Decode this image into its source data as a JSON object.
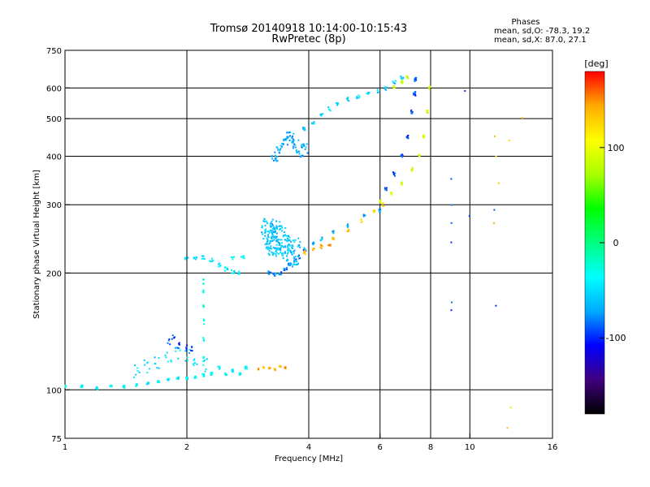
{
  "header": {
    "title": "Tromsø 20140918 10:14:00-10:15:43",
    "subtitle": "RwPretec (8p)",
    "stats_title": "Phases",
    "stats_o": "mean, sd,O: -78.3, 19.2",
    "stats_x": "mean, sd,X:  87.0, 27.1"
  },
  "chart_data": {
    "type": "scatter",
    "xlabel": "Frequency [MHz]",
    "ylabel": "Stationary phase Virtual Height [km]",
    "x_scale": "log",
    "y_scale": "log",
    "xlim": [
      1,
      16
    ],
    "ylim": [
      75,
      750
    ],
    "grid": true,
    "x_ticks": [
      {
        "value": 1,
        "label": "1"
      },
      {
        "value": 2,
        "label": "2"
      },
      {
        "value": 4,
        "label": "4"
      },
      {
        "value": 6,
        "label": "6"
      },
      {
        "value": 8,
        "label": "8"
      },
      {
        "value": 10,
        "label": "10"
      },
      {
        "value": 16,
        "label": "16"
      }
    ],
    "y_ticks": [
      {
        "value": 75,
        "label": "75"
      },
      {
        "value": 100,
        "label": "100"
      },
      {
        "value": 200,
        "label": "200"
      },
      {
        "value": 300,
        "label": "300"
      },
      {
        "value": 400,
        "label": "400"
      },
      {
        "value": 500,
        "label": "500"
      },
      {
        "value": 600,
        "label": "600"
      },
      {
        "value": 750,
        "label": "750"
      }
    ],
    "grid_x": [
      2,
      4,
      6,
      8,
      10
    ],
    "grid_y": [
      100,
      200,
      300,
      400,
      500,
      600
    ],
    "colorbar": {
      "label": "[deg]",
      "range": [
        -180,
        180
      ],
      "ticks": [
        {
          "value": 100,
          "label": "100"
        },
        {
          "value": 0,
          "label": "0"
        },
        {
          "value": -100,
          "label": "-100"
        }
      ],
      "colors": [
        "#000000",
        "#40007f",
        "#0000ff",
        "#00aaff",
        "#00ffff",
        "#00ff80",
        "#00ff00",
        "#aaff00",
        "#ffff00",
        "#ffaa00",
        "#ff0000"
      ]
    },
    "series": [
      {
        "x": [
          1.0,
          1.1,
          1.2,
          1.3,
          1.4,
          1.5,
          1.6,
          1.7,
          1.8,
          1.9,
          2.0,
          2.1,
          2.2,
          2.3,
          2.4,
          2.5,
          2.6,
          2.7,
          2.8
        ],
        "y": [
          102,
          102,
          101,
          102,
          102,
          103,
          104,
          105,
          106,
          107,
          107,
          108,
          109,
          110,
          114,
          110,
          112,
          110,
          114
        ],
        "phase": -40,
        "jitter_x": 0.006,
        "jitter_y": 0.008,
        "n": 8
      },
      {
        "x": [
          1.5,
          1.6,
          1.7,
          1.8,
          1.9,
          2.0,
          2.1,
          2.2
        ],
        "y": [
          112,
          115,
          118,
          120,
          125,
          122,
          118,
          116
        ],
        "phase": -50,
        "jitter_x": 0.02,
        "jitter_y": 0.04,
        "n": 6
      },
      {
        "x": [
          1.8,
          1.85,
          1.9,
          2.0,
          2.05
        ],
        "y": [
          133,
          136,
          130,
          128,
          127
        ],
        "phase": -95,
        "jitter_x": 0.01,
        "jitter_y": 0.02,
        "n": 4
      },
      {
        "x": [
          2.2,
          2.2,
          2.2,
          2.2,
          2.2,
          2.2
        ],
        "y": [
          120,
          135,
          150,
          165,
          180,
          190
        ],
        "phase": -30,
        "jitter_x": 0.003,
        "jitter_y": 0.015,
        "n": 5
      },
      {
        "x": [
          2.0,
          2.1,
          2.2,
          2.3,
          2.4,
          2.5,
          2.6,
          2.7
        ],
        "y": [
          218,
          219,
          220,
          216,
          210,
          205,
          202,
          201
        ],
        "phase": -45,
        "jitter_x": 0.01,
        "jitter_y": 0.012,
        "n": 6
      },
      {
        "x": [
          2.6,
          2.75
        ],
        "y": [
          218,
          220
        ],
        "phase": -40,
        "jitter_x": 0.01,
        "jitter_y": 0.01,
        "n": 5
      },
      {
        "x": [
          3.15,
          3.2,
          3.25,
          3.3,
          3.35,
          3.4,
          3.5,
          3.6,
          3.7
        ],
        "y": [
          250,
          255,
          240,
          250,
          245,
          240,
          235,
          230,
          225
        ],
        "phase": -60,
        "jitter_x": 0.03,
        "jitter_y": 0.09,
        "n": 25
      },
      {
        "x": [
          3.2,
          3.3,
          3.4,
          3.5,
          3.6,
          3.7,
          3.8,
          3.9
        ],
        "y": [
          200,
          198,
          200,
          205,
          210,
          215,
          220,
          228
        ],
        "phase": -80,
        "jitter_x": 0.01,
        "jitter_y": 0.01,
        "n": 6
      },
      {
        "x": [
          3.3,
          3.4,
          3.5,
          3.6,
          3.7,
          3.8,
          3.9
        ],
        "y": [
          400,
          420,
          440,
          450,
          430,
          410,
          420
        ],
        "phase": -70,
        "jitter_x": 0.02,
        "jitter_y": 0.03,
        "n": 12
      },
      {
        "x": [
          3.9,
          4.1,
          4.3,
          4.5,
          4.7,
          5.0,
          5.3,
          5.6,
          5.9,
          6.2,
          6.5,
          6.8
        ],
        "y": [
          470,
          490,
          510,
          530,
          545,
          560,
          570,
          580,
          590,
          600,
          620,
          640
        ],
        "phase": -55,
        "jitter_x": 0.008,
        "jitter_y": 0.012,
        "n": 5
      },
      {
        "x": [
          3.9,
          4.1,
          4.3,
          4.6,
          5.0,
          5.5,
          6.0
        ],
        "y": [
          230,
          238,
          245,
          255,
          265,
          280,
          290
        ],
        "phase": -70,
        "jitter_x": 0.006,
        "jitter_y": 0.01,
        "n": 5
      },
      {
        "x": [
          3.9,
          4.1,
          4.3,
          4.5
        ],
        "y": [
          226,
          230,
          234,
          238
        ],
        "phase": 140,
        "jitter_x": 0.006,
        "jitter_y": 0.012,
        "n": 6
      },
      {
        "x": [
          4.6,
          5.0,
          5.4,
          5.8,
          6.1
        ],
        "y": [
          245,
          258,
          272,
          288,
          300
        ],
        "phase": 130,
        "jitter_x": 0.005,
        "jitter_y": 0.01,
        "n": 5
      },
      {
        "x": [
          6.0,
          6.4,
          6.8,
          7.2,
          7.5,
          7.7,
          7.85,
          7.95
        ],
        "y": [
          305,
          320,
          340,
          370,
          400,
          450,
          520,
          600
        ],
        "phase": 85,
        "jitter_x": 0.004,
        "jitter_y": 0.01,
        "n": 7
      },
      {
        "x": [
          6.2,
          6.5,
          6.8,
          7.0,
          7.2,
          7.3,
          7.35
        ],
        "y": [
          330,
          360,
          400,
          450,
          520,
          580,
          630
        ],
        "phase": -95,
        "jitter_x": 0.006,
        "jitter_y": 0.012,
        "n": 7
      },
      {
        "x": [
          6.5,
          6.8,
          7.0
        ],
        "y": [
          600,
          620,
          640
        ],
        "phase": 80,
        "jitter_x": 0.006,
        "jitter_y": 0.01,
        "n": 6
      },
      {
        "x": [
          3.0,
          3.1,
          3.2,
          3.3,
          3.4,
          3.5
        ],
        "y": [
          113,
          114,
          114,
          113,
          115,
          114
        ],
        "phase": 140,
        "jitter_x": 0.004,
        "jitter_y": 0.006,
        "n": 6
      },
      {
        "x": [
          9.0,
          9.0,
          9.0,
          9.0,
          9.0,
          9.0
        ],
        "y": [
          350,
          300,
          240,
          168,
          160,
          270
        ],
        "phase": -90,
        "jitter_x": 0.002,
        "jitter_y": 0.005,
        "n": 1
      },
      {
        "x": [
          11.5,
          11.6,
          11.8,
          11.5,
          12.5,
          12.6,
          12.4,
          13.5
        ],
        "y": [
          450,
          400,
          340,
          270,
          440,
          90,
          80,
          500
        ],
        "phase": 130,
        "jitter_x": 0.003,
        "jitter_y": 0.005,
        "n": 1
      },
      {
        "x": [
          9.7,
          10.0,
          11.5,
          11.6
        ],
        "y": [
          590,
          280,
          290,
          165
        ],
        "phase": -90,
        "jitter_x": 0.003,
        "jitter_y": 0.005,
        "n": 1
      }
    ]
  }
}
